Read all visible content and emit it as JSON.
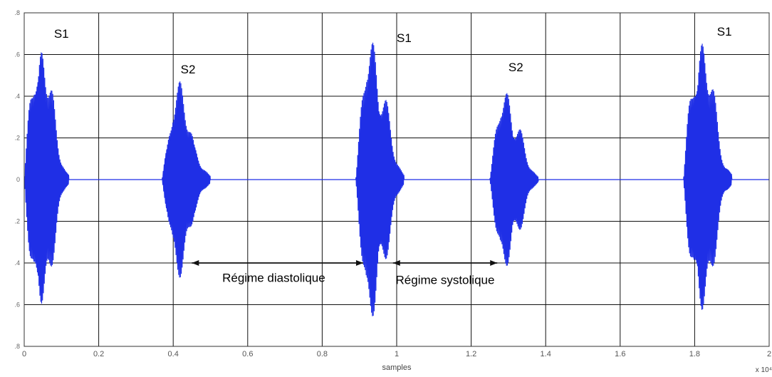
{
  "chart_data": {
    "type": "line",
    "title": "",
    "xlabel": "samples",
    "ylabel": "",
    "x_exponent_label": "x 10⁴",
    "xlim": [
      0,
      2
    ],
    "ylim": [
      -0.8,
      0.8
    ],
    "grid": true,
    "x_ticks": [
      0,
      0.2,
      0.4,
      0.6,
      0.8,
      1,
      1.2,
      1.4,
      1.6,
      1.8,
      2
    ],
    "x_tick_labels": [
      "0",
      "0.2",
      "0.4",
      "0.6",
      "0.8",
      "1",
      "1.2",
      "1.4",
      "1.6",
      "1.8",
      "2"
    ],
    "y_ticks": [
      0.8,
      0.6,
      0.4,
      0.2,
      0,
      -0.2,
      -0.4,
      -0.6,
      -0.8
    ],
    "y_tick_labels": [
      ".8",
      ".6",
      ".4",
      ".2",
      "0",
      ".2",
      ".4",
      ".6",
      ".8"
    ],
    "line_color": "#1f2fe6",
    "series": [
      {
        "name": "",
        "bursts": [
          {
            "sound": "S1",
            "start": 0.0,
            "end": 0.12,
            "peak": 0.75,
            "trough": -0.73
          },
          {
            "sound": "S2",
            "start": 0.37,
            "end": 0.5,
            "peak": 0.47,
            "trough": -0.47
          },
          {
            "sound": "S1",
            "start": 0.89,
            "end": 1.02,
            "peak": 0.73,
            "trough": -0.73
          },
          {
            "sound": "S2",
            "start": 1.25,
            "end": 1.38,
            "peak": 0.46,
            "trough": -0.46
          },
          {
            "sound": "S1",
            "start": 1.77,
            "end": 1.9,
            "peak": 0.76,
            "trough": -0.73
          }
        ],
        "baseline": 0
      }
    ],
    "annotations": [
      {
        "text": "S1",
        "x": 0.08,
        "y": 0.68
      },
      {
        "text": "S2",
        "x": 0.42,
        "y": 0.51
      },
      {
        "text": "S1",
        "x": 1.0,
        "y": 0.66
      },
      {
        "text": "S2",
        "x": 1.3,
        "y": 0.52
      },
      {
        "text": "S1",
        "x": 1.86,
        "y": 0.69
      }
    ],
    "arrows": [
      {
        "label": "Régime diastolique",
        "x_from": 0.45,
        "x_to": 0.91,
        "y": -0.4,
        "label_x": 0.67,
        "label_y": -0.49
      },
      {
        "label": "Régime systolique",
        "x_from": 0.99,
        "x_to": 1.27,
        "y": -0.4,
        "label_x": 1.13,
        "label_y": -0.5
      }
    ]
  }
}
